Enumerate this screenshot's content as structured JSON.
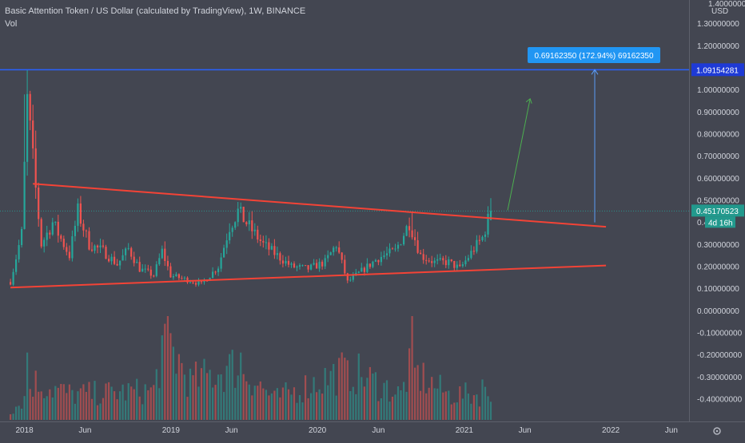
{
  "header": {
    "title": "Basic Attention Token / US Dollar (calculated by TradingView), 1W, BINANCE",
    "indicator": "Vol"
  },
  "colors": {
    "background": "#434651",
    "up": "#26a69a",
    "down": "#ef5350",
    "trendline": "#f44336",
    "target_line": "#2962ff",
    "projection_arrow": "#4caf50",
    "label_bg": "#2196f3",
    "axis_text": "#d1d4dc"
  },
  "chart_data": {
    "type": "candlestick",
    "title": "Basic Attention Token / US Dollar (calculated by TradingView), 1W, BINANCE",
    "currency": "USD",
    "x_ticks": [
      "2018",
      "Jun",
      "2019",
      "Jun",
      "2020",
      "Jun",
      "2021",
      "Jun",
      "2022",
      "Jun"
    ],
    "x_tick_dates": [
      "2018-01-01",
      "2018-06-01",
      "2019-01-01",
      "2019-06-01",
      "2020-01-01",
      "2020-06-01",
      "2021-01-01",
      "2021-06-01",
      "2022-01-01",
      "2022-06-01"
    ],
    "x_range": [
      "2017-11-01",
      "2022-07-15"
    ],
    "y_range": [
      -0.44,
      1.4
    ],
    "y_ticks": [
      1.3,
      1.2,
      1.1,
      1.0,
      0.9,
      0.8,
      0.7,
      0.6,
      0.5,
      0.4,
      0.3,
      0.2,
      0.1,
      0.0,
      -0.1,
      -0.2,
      -0.3,
      -0.4
    ],
    "y_tick_labels": [
      "1.30000000",
      "1.20000000",
      "1.10000000",
      "1.00000000",
      "0.90000000",
      "0.80000000",
      "0.70000000",
      "0.60000000",
      "0.50000000",
      "0.40",
      "0.30000000",
      "0.20000000",
      "0.10000000",
      "0.00000000",
      "-0.10000000",
      "-0.20000000",
      "-0.30000000",
      "-0.40000000"
    ],
    "y_top_label": "1.40000000",
    "current_price": 0.45170523,
    "current_price_label": "0.45170523",
    "countdown_label": "4d 16h",
    "target_price": 1.09154281,
    "target_price_label": "1.09154281",
    "measure_label": "0.69162350 (172.94%) 69162350",
    "trendlines": [
      {
        "name": "descending resistance",
        "from": [
          "2018-01-22",
          0.575
        ],
        "to": [
          "2021-12-20",
          0.38
        ]
      },
      {
        "name": "ascending support",
        "from": [
          "2017-11-27",
          0.105
        ],
        "to": [
          "2021-12-20",
          0.205
        ]
      }
    ],
    "measure": {
      "x": "2021-11-22",
      "from": 0.4,
      "to": 1.09154281
    },
    "projection": {
      "from": [
        "2021-04-19",
        0.455
      ],
      "to": [
        "2021-06-14",
        0.96
      ]
    },
    "price_anchors": [
      [
        "2017-11-27",
        0.13
      ],
      [
        "2017-12-25",
        0.35
      ],
      [
        "2018-01-08",
        0.95
      ],
      [
        "2018-01-29",
        0.55
      ],
      [
        "2018-02-12",
        0.3
      ],
      [
        "2018-03-12",
        0.4
      ],
      [
        "2018-04-23",
        0.25
      ],
      [
        "2018-05-14",
        0.45
      ],
      [
        "2018-06-11",
        0.3
      ],
      [
        "2018-07-16",
        0.27
      ],
      [
        "2018-08-20",
        0.21
      ],
      [
        "2018-09-17",
        0.28
      ],
      [
        "2018-10-15",
        0.19
      ],
      [
        "2018-11-19",
        0.16
      ],
      [
        "2018-12-10",
        0.27
      ],
      [
        "2018-12-31",
        0.16
      ],
      [
        "2019-02-11",
        0.14
      ],
      [
        "2019-03-18",
        0.12
      ],
      [
        "2019-04-29",
        0.2
      ],
      [
        "2019-05-27",
        0.38
      ],
      [
        "2019-06-17",
        0.45
      ],
      [
        "2019-07-15",
        0.38
      ],
      [
        "2019-08-19",
        0.3
      ],
      [
        "2019-09-23",
        0.25
      ],
      [
        "2019-10-28",
        0.2
      ],
      [
        "2019-12-09",
        0.19
      ],
      [
        "2020-01-20",
        0.22
      ],
      [
        "2020-02-17",
        0.3
      ],
      [
        "2020-03-16",
        0.13
      ],
      [
        "2020-04-20",
        0.18
      ],
      [
        "2020-06-01",
        0.24
      ],
      [
        "2020-07-13",
        0.27
      ],
      [
        "2020-08-17",
        0.4
      ],
      [
        "2020-09-14",
        0.25
      ],
      [
        "2020-10-19",
        0.22
      ],
      [
        "2020-11-23",
        0.22
      ],
      [
        "2020-12-21",
        0.19
      ],
      [
        "2021-01-25",
        0.28
      ],
      [
        "2021-02-15",
        0.33
      ],
      [
        "2021-03-08",
        0.452
      ]
    ],
    "volume_anchors": [
      [
        "2017-11-27",
        0.1
      ],
      [
        "2018-01-01",
        0.25
      ],
      [
        "2018-01-22",
        0.45
      ],
      [
        "2018-04-30",
        0.3
      ],
      [
        "2018-11-19",
        0.35
      ],
      [
        "2018-12-17",
        1.0
      ],
      [
        "2019-02-18",
        0.45
      ],
      [
        "2019-06-17",
        0.65
      ],
      [
        "2019-09-16",
        0.25
      ],
      [
        "2020-03-16",
        0.6
      ],
      [
        "2020-07-27",
        0.3
      ],
      [
        "2020-08-17",
        0.6
      ],
      [
        "2020-11-23",
        0.3
      ],
      [
        "2021-01-11",
        0.3
      ],
      [
        "2021-02-22",
        0.3
      ]
    ],
    "volume_spikes": [
      [
        "2018-12-17",
        1.0
      ],
      [
        "2020-03-16",
        0.62
      ],
      [
        "2020-08-24",
        1.08
      ],
      [
        "2019-06-24",
        0.7
      ],
      [
        "2018-01-08",
        0.7
      ],
      [
        "2021-02-15",
        0.42
      ]
    ],
    "grid": false,
    "legend": "none"
  }
}
